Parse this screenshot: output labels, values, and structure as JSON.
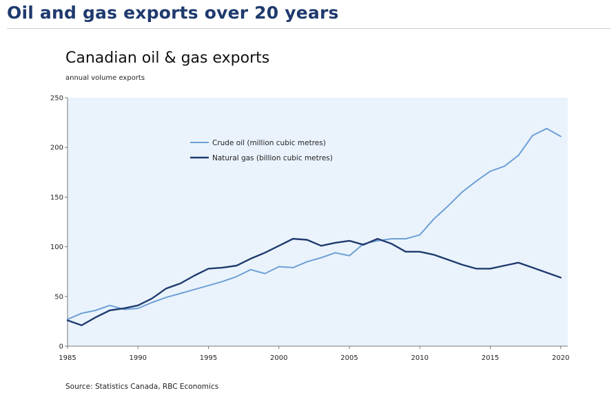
{
  "page": {
    "heading": "Oil and gas exports over 20 years"
  },
  "chart_data": {
    "type": "line",
    "title": "Canadian oil & gas exports",
    "subtitle": "annual volume exports",
    "source": "Source: Statistics Canada, RBC Economics",
    "xlabel": "",
    "ylabel": "",
    "xlim": [
      1985,
      2020.5
    ],
    "ylim": [
      0,
      250
    ],
    "x_ticks": [
      1985,
      1990,
      1995,
      2000,
      2005,
      2010,
      2015,
      2020
    ],
    "y_ticks": [
      0,
      50,
      100,
      150,
      200,
      250
    ],
    "grid": false,
    "legend_position": "upper-left",
    "plot_background": "#eaf3fc",
    "x": [
      1985,
      1986,
      1987,
      1988,
      1989,
      1990,
      1991,
      1992,
      1993,
      1994,
      1995,
      1996,
      1997,
      1998,
      1999,
      2000,
      2001,
      2002,
      2003,
      2004,
      2005,
      2006,
      2007,
      2008,
      2009,
      2010,
      2011,
      2012,
      2013,
      2014,
      2015,
      2016,
      2017,
      2018,
      2019,
      2020
    ],
    "series": [
      {
        "name": "Crude oil (million cubic metres)",
        "color": "#6d9fd6",
        "values": [
          27,
          33,
          36,
          41,
          37,
          38,
          44,
          49,
          53,
          57,
          61,
          65,
          70,
          77,
          73,
          80,
          79,
          85,
          89,
          94,
          91,
          103,
          106,
          108,
          108,
          112,
          128,
          141,
          155,
          166,
          176,
          181,
          192,
          212,
          219,
          211
        ]
      },
      {
        "name": "Natural gas (billion cubic metres)",
        "color": "#1f3a6e",
        "values": [
          26,
          21,
          29,
          36,
          38,
          41,
          48,
          58,
          63,
          71,
          78,
          79,
          81,
          88,
          94,
          101,
          108,
          107,
          101,
          104,
          106,
          102,
          108,
          103,
          95,
          95,
          92,
          87,
          82,
          78,
          78,
          81,
          84,
          79,
          74,
          69
        ]
      }
    ]
  }
}
